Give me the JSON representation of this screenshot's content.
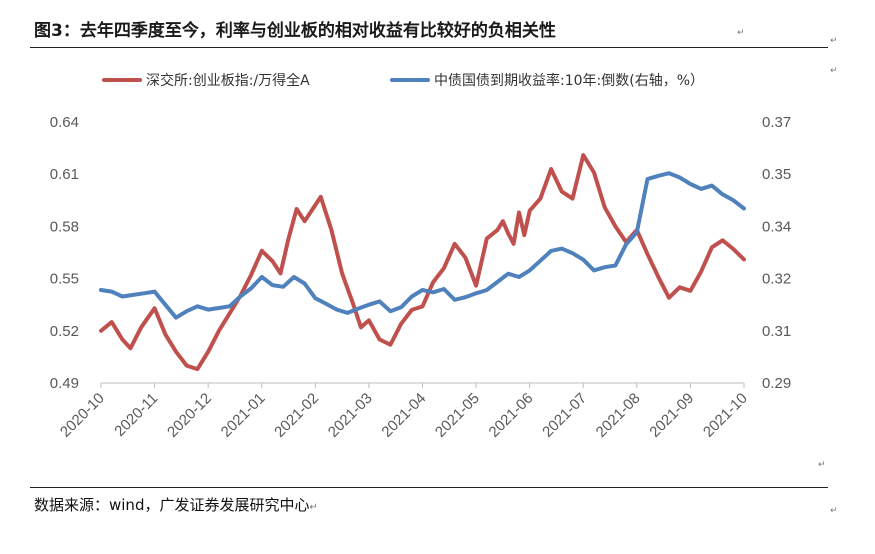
{
  "title": "图3：去年四季度至今，利率与创业板的相对收益有比较好的负相关性",
  "source": "数据来源：wind，广发证券发展研究中心",
  "chart_data": {
    "type": "line",
    "legend_position": "top",
    "grid": false,
    "x_ticks": [
      "2020-10",
      "2020-11",
      "2020-12",
      "2021-01",
      "2021-02",
      "2021-03",
      "2021-04",
      "2021-05",
      "2021-06",
      "2021-07",
      "2021-08",
      "2021-09",
      "2021-10"
    ],
    "y_left": {
      "range": [
        0.49,
        0.64
      ],
      "ticks": [
        "0.49",
        "0.52",
        "0.55",
        "0.58",
        "0.61",
        "0.64"
      ]
    },
    "y_right": {
      "range": [
        0.29,
        0.37
      ],
      "ticks": [
        "0.29",
        "0.31",
        "0.32",
        "0.34",
        "0.35",
        "0.37"
      ]
    },
    "series": [
      {
        "name": "深交所:创业板指:/万得全A",
        "axis": "left",
        "color": "#c0504d",
        "x": [
          0,
          0.2,
          0.4,
          0.55,
          0.75,
          1,
          1.2,
          1.4,
          1.6,
          1.8,
          2,
          2.2,
          2.4,
          2.6,
          2.8,
          3,
          3.2,
          3.35,
          3.5,
          3.65,
          3.8,
          3.95,
          4.1,
          4.3,
          4.5,
          4.7,
          4.85,
          5,
          5.2,
          5.4,
          5.6,
          5.8,
          6,
          6.2,
          6.4,
          6.6,
          6.8,
          7,
          7.2,
          7.4,
          7.5,
          7.6,
          7.7,
          7.8,
          7.9,
          8,
          8.2,
          8.4,
          8.6,
          8.8,
          9,
          9.2,
          9.4,
          9.6,
          9.8,
          10,
          10.2,
          10.4,
          10.6,
          10.8,
          11,
          11.2,
          11.4,
          11.6,
          11.8,
          12
        ],
        "y": [
          0.52,
          0.525,
          0.515,
          0.51,
          0.522,
          0.533,
          0.518,
          0.508,
          0.5,
          0.498,
          0.508,
          0.52,
          0.53,
          0.54,
          0.552,
          0.566,
          0.56,
          0.553,
          0.573,
          0.59,
          0.583,
          0.59,
          0.597,
          0.578,
          0.553,
          0.536,
          0.522,
          0.526,
          0.515,
          0.512,
          0.524,
          0.532,
          0.534,
          0.548,
          0.556,
          0.57,
          0.562,
          0.546,
          0.573,
          0.578,
          0.583,
          0.576,
          0.57,
          0.588,
          0.575,
          0.589,
          0.596,
          0.613,
          0.6,
          0.596,
          0.621,
          0.611,
          0.591,
          0.58,
          0.571,
          0.578,
          0.564,
          0.551,
          0.539,
          0.545,
          0.543,
          0.554,
          0.568,
          0.572,
          0.567,
          0.561
        ]
      },
      {
        "name": "中债国债到期收益率:10年:倒数(右轴，%）",
        "axis": "right",
        "color": "#4f81bd",
        "x": [
          0,
          0.2,
          0.4,
          0.6,
          0.8,
          1,
          1.2,
          1.4,
          1.6,
          1.8,
          2,
          2.2,
          2.4,
          2.6,
          2.8,
          3,
          3.2,
          3.4,
          3.6,
          3.8,
          4,
          4.2,
          4.4,
          4.6,
          4.8,
          5,
          5.2,
          5.4,
          5.6,
          5.8,
          6,
          6.2,
          6.4,
          6.6,
          6.8,
          7,
          7.2,
          7.4,
          7.6,
          7.8,
          8,
          8.2,
          8.4,
          8.6,
          8.8,
          9,
          9.2,
          9.4,
          9.6,
          9.8,
          10,
          10.2,
          10.4,
          10.6,
          10.8,
          11,
          11.2,
          11.4,
          11.6,
          11.8,
          12
        ],
        "y": [
          0.3185,
          0.318,
          0.3165,
          0.317,
          0.3175,
          0.318,
          0.314,
          0.31,
          0.312,
          0.3135,
          0.3125,
          0.313,
          0.3135,
          0.3165,
          0.319,
          0.3225,
          0.32,
          0.3195,
          0.3225,
          0.3205,
          0.316,
          0.3143,
          0.3125,
          0.3115,
          0.3128,
          0.314,
          0.315,
          0.312,
          0.3132,
          0.3165,
          0.3185,
          0.3178,
          0.3188,
          0.3155,
          0.3163,
          0.3175,
          0.3185,
          0.321,
          0.3235,
          0.3225,
          0.3245,
          0.3275,
          0.3305,
          0.3312,
          0.3298,
          0.3278,
          0.3245,
          0.3255,
          0.326,
          0.3325,
          0.3362,
          0.3525,
          0.3535,
          0.3543,
          0.353,
          0.351,
          0.3495,
          0.3505,
          0.3478,
          0.346,
          0.3435
        ]
      }
    ]
  }
}
